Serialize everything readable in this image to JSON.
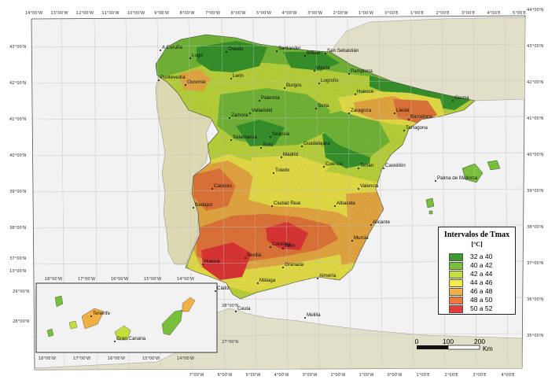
{
  "map": {
    "lon_ticks_top": [
      "14°00'W",
      "13°00'W",
      "12°00'W",
      "11°00'W",
      "10°00'W",
      "9°00'W",
      "8°00'W",
      "7°00'W",
      "6°00'W",
      "5°00'W",
      "4°00'W",
      "3°00'W",
      "2°00'W",
      "1°00'W",
      "0°00'E",
      "1°00'E",
      "2°00'E",
      "3°00'E",
      "4°00'E",
      "5°00'E"
    ],
    "lon_ticks_bottom": [
      "7°00'W",
      "6°00'W",
      "5°00'W",
      "4°00'W",
      "3°00'W",
      "2°00'W",
      "1°00'W",
      "0°00'W",
      "1°00'E",
      "2°00'E",
      "3°00'E",
      "4°00'E"
    ],
    "lat_ticks_left": [
      "43°00'N",
      "42°00'N",
      "41°00'N",
      "40°00'N",
      "39°00'N",
      "38°00'N",
      "37°00'N",
      "13°00'N"
    ],
    "lat_ticks_right": [
      "44°00'N",
      "43°00'N",
      "42°00'N",
      "41°00'N",
      "40°00'N",
      "39°00'N",
      "38°00'N",
      "37°00'N",
      "36°00'N",
      "35°00'N"
    ],
    "inset_lon_ticks_top": [
      "18°00'W",
      "17°00'W",
      "16°00'W",
      "15°00'W",
      "14°00'W"
    ],
    "inset_lon_ticks_bottom": [
      "18°00'W",
      "17°00'W",
      "16°00'W",
      "15°00'W",
      "14°00'W"
    ],
    "inset_lat_ticks": [
      "29°00'N",
      "28°00'N",
      "28°00'N",
      "27°00'N"
    ],
    "cities": [
      "A Coruña",
      "Lugo",
      "Oviedo",
      "Santander",
      "Bilbao",
      "San Sebastián",
      "Pontevedra",
      "Ourense",
      "León",
      "Vitoria",
      "Pamplona",
      "Logroño",
      "Burgos",
      "Huesca",
      "Girona",
      "Palencia",
      "Soria",
      "Zaragoza",
      "Lleida",
      "Barcelona",
      "Zamora",
      "Valladolid",
      "Tarragona",
      "Salamanca",
      "Segovia",
      "Ávila",
      "Guadalajara",
      "Madrid",
      "Cuenca",
      "Teruel",
      "Castellón",
      "Palma de Mallorca",
      "Toledo",
      "Cáceres",
      "Valencia",
      "Badajoz",
      "Ciudad Real",
      "Albacete",
      "Alicante",
      "Córdoba",
      "Jaén",
      "Murcia",
      "Sevilla",
      "Huelva",
      "Granada",
      "Almería",
      "Cádiz",
      "Málaga",
      "Ceuta",
      "Melilla",
      "Tenerife",
      "Gran Canaria"
    ],
    "colors": {
      "sea": "#f2f2f2",
      "foreign_land": "#e2dfc8",
      "portugal": "#dcd8b2",
      "border": "#555555"
    }
  },
  "legend": {
    "title": "Intervalos de Tmax",
    "unit": "[°C]",
    "items": [
      {
        "label": "32 a 40",
        "color": "#3a9a2e"
      },
      {
        "label": "40 a 42",
        "color": "#78bf3a"
      },
      {
        "label": "42 a 44",
        "color": "#c4de3e"
      },
      {
        "label": "44 a 46",
        "color": "#f2ea4a"
      },
      {
        "label": "46 a 48",
        "color": "#f2b044"
      },
      {
        "label": "48 a 50",
        "color": "#ec7a3c"
      },
      {
        "label": "50 a 52",
        "color": "#e83838"
      }
    ]
  },
  "scale_bar": {
    "labels": [
      "0",
      "100",
      "200"
    ],
    "unit": "Km"
  }
}
